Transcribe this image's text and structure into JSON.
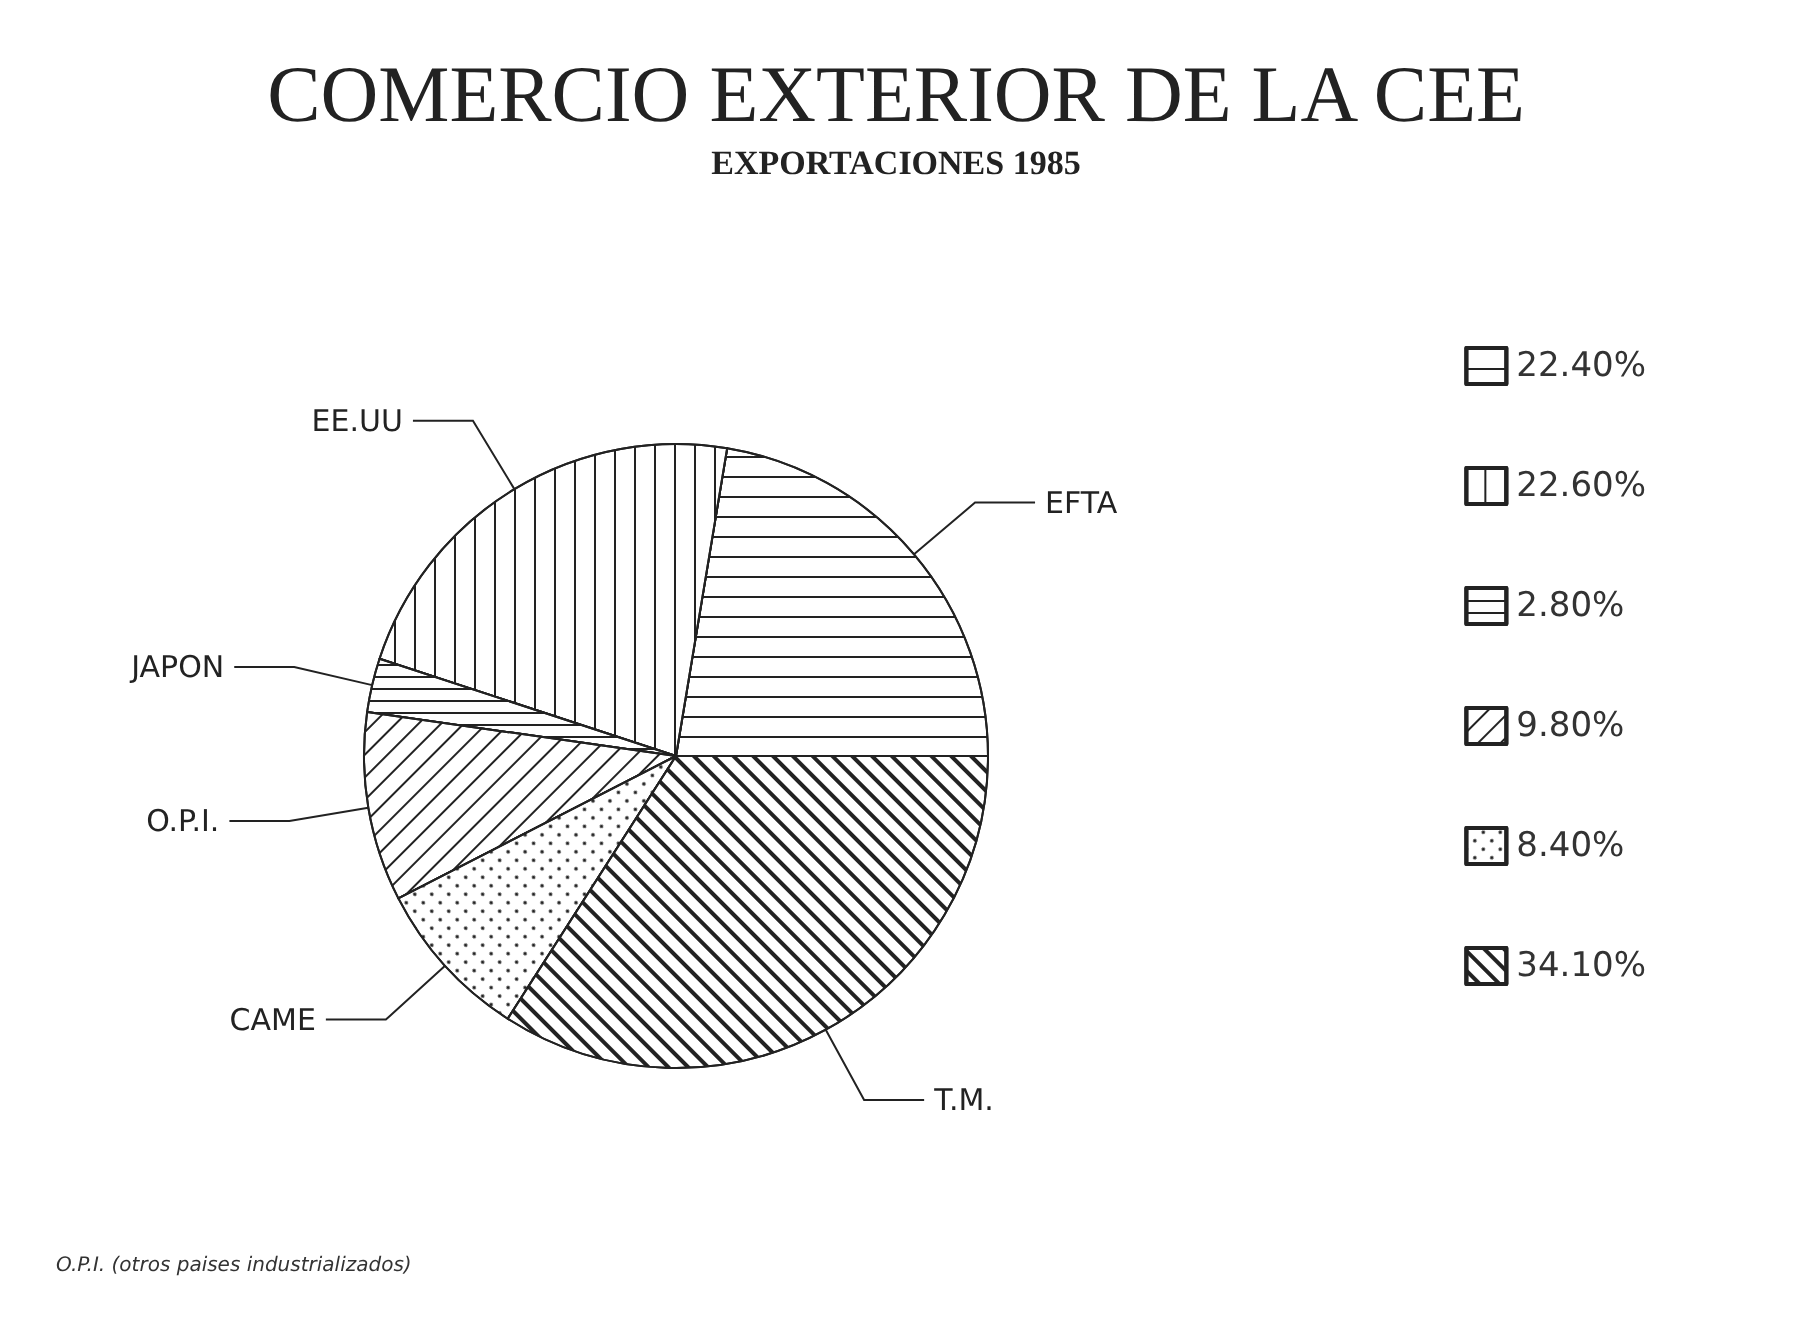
{
  "chart_data": {
    "type": "pie",
    "title": "COMERCIO EXTERIOR DE LA CEE",
    "subtitle": "EXPORTACIONES 1985",
    "categories": [
      "22.40%",
      "22.60%",
      "2.80%",
      "9.80%",
      "8.40%",
      "34.10%"
    ],
    "values": [
      22.4,
      22.6,
      2.8,
      9.8,
      8.4,
      34.1
    ],
    "colors": [
      "#ffffff",
      "#ffffff",
      "#ffffff",
      "#ffffff",
      "#ffffff",
      "#ffffff"
    ],
    "legend": "right",
    "annotations": [
      {
        "text": "EFTA",
        "x": "22.40%"
      },
      {
        "text": "EE.UU",
        "x": "22.60%"
      },
      {
        "text": "JAPON",
        "x": "2.80%"
      },
      {
        "text": "O.P.I.",
        "x": "9.80%"
      },
      {
        "text": "CAME",
        "x": "8.40%"
      },
      {
        "text": "T.M.",
        "x": "34.10%"
      },
      "O.P.I. (otros paises industrializados)"
    ]
  }
}
